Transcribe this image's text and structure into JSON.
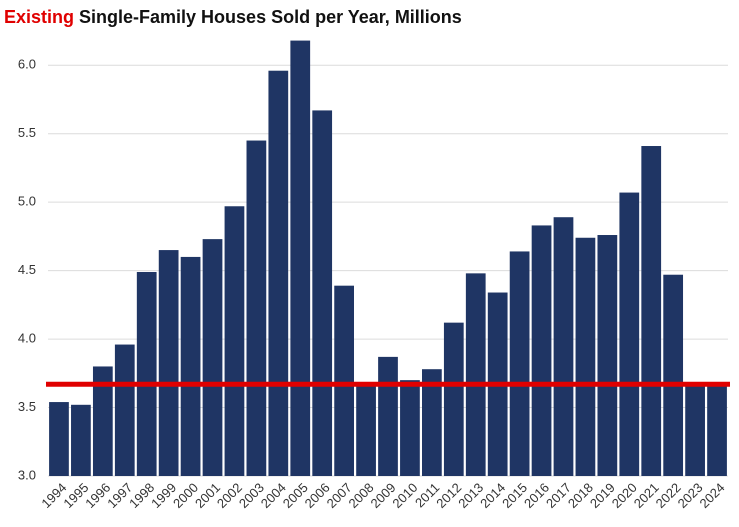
{
  "chart_data": {
    "type": "bar",
    "title_highlight": "Existing",
    "title": "Single-Family Houses Sold per Year, Millions",
    "title_highlight_color": "#e00000",
    "categories": [
      "1994",
      "1995",
      "1996",
      "1997",
      "1998",
      "1999",
      "2000",
      "2001",
      "2002",
      "2003",
      "2004",
      "2005",
      "2006",
      "2007",
      "2008",
      "2009",
      "2010",
      "2011",
      "2012",
      "2013",
      "2014",
      "2015",
      "2016",
      "2017",
      "2018",
      "2019",
      "2020",
      "2021",
      "2022",
      "2023",
      "2024"
    ],
    "values": [
      3.54,
      3.52,
      3.8,
      3.96,
      4.49,
      4.65,
      4.6,
      4.73,
      4.97,
      5.45,
      5.96,
      6.18,
      5.67,
      4.39,
      3.67,
      3.87,
      3.7,
      3.78,
      4.12,
      4.48,
      4.34,
      4.64,
      4.83,
      4.89,
      4.74,
      4.76,
      5.07,
      5.41,
      4.47,
      3.66,
      3.66
    ],
    "color": "#1f3564",
    "ylim": [
      3.0,
      6.25
    ],
    "yticks": [
      {
        "value": 3.0,
        "label": "3.0"
      },
      {
        "value": 3.5,
        "label": "3.5"
      },
      {
        "value": 4.0,
        "label": "4.0"
      },
      4.5,
      {
        "value": 5.0,
        "label": "5.0"
      },
      5.5,
      {
        "value": 6.0,
        "label": "6.0"
      }
    ],
    "grid": true,
    "reference_line": {
      "value": 3.67,
      "color": "#e00000"
    }
  }
}
